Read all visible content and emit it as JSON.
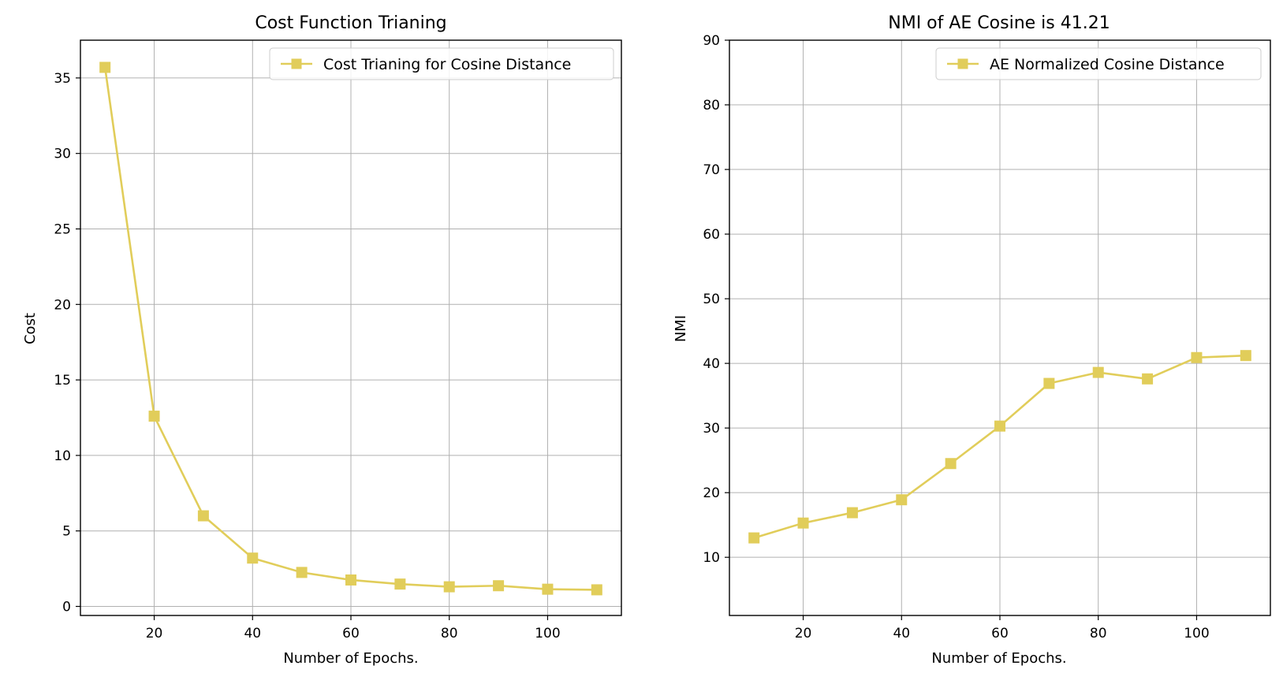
{
  "chart_data": [
    {
      "type": "line",
      "title": "Cost Function Trianing",
      "xlabel": "Number of Epochs.",
      "ylabel": "Cost",
      "xlim": [
        5,
        115
      ],
      "ylim": [
        -0.6,
        37.5
      ],
      "xticks": [
        20,
        40,
        60,
        80,
        100
      ],
      "yticks": [
        0,
        5,
        10,
        15,
        20,
        25,
        30,
        35
      ],
      "grid": true,
      "legend_position": "top-right",
      "series": [
        {
          "name": "Cost Trianing for Cosine Distance",
          "color": "#e1cd5a",
          "marker": "square",
          "x": [
            10,
            20,
            30,
            40,
            50,
            60,
            70,
            80,
            90,
            100,
            110
          ],
          "y": [
            35.7,
            12.6,
            6.0,
            3.2,
            2.25,
            1.75,
            1.48,
            1.3,
            1.37,
            1.14,
            1.1
          ]
        }
      ]
    },
    {
      "type": "line",
      "title": "NMI of AE Cosine is 41.21",
      "xlabel": "Number of Epochs.",
      "ylabel": "NMI",
      "xlim": [
        5,
        115
      ],
      "ylim": [
        1,
        90
      ],
      "xticks": [
        20,
        40,
        60,
        80,
        100
      ],
      "yticks": [
        10,
        20,
        30,
        40,
        50,
        60,
        70,
        80,
        90
      ],
      "grid": true,
      "legend_position": "top-right",
      "series": [
        {
          "name": "AE Normalized Cosine Distance",
          "color": "#e1cd5a",
          "marker": "square",
          "x": [
            10,
            20,
            30,
            40,
            50,
            60,
            70,
            80,
            90,
            100,
            110
          ],
          "y": [
            13.0,
            15.3,
            16.9,
            18.9,
            24.5,
            30.3,
            36.9,
            38.6,
            37.6,
            40.9,
            41.21
          ]
        }
      ]
    }
  ]
}
